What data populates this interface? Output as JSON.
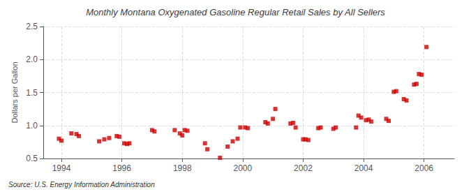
{
  "chart_data": {
    "type": "scatter",
    "title": "Monthly Montana Oxygenated Gasoline Regular Retail Sales by All Sellers",
    "ylabel": "Dollars per Gallon",
    "annotations": [
      "Source: U.S. Energy Information Administration"
    ],
    "color": "#cc0000",
    "marker": "square",
    "grid": true,
    "xlim": [
      1993.4,
      2007.0
    ],
    "xticks": [
      1994,
      1996,
      1998,
      2000,
      2002,
      2004,
      2006
    ],
    "ylim": [
      0.5,
      2.5
    ],
    "yticks": [
      0.5,
      {
        "value": 1.0,
        "label": "1.0"
      },
      1.5,
      {
        "value": 2.0,
        "label": "2.0"
      },
      2.5
    ],
    "x": [
      1993.92,
      1994.0,
      1994.33,
      1994.5,
      1994.58,
      1995.25,
      1995.42,
      1995.58,
      1995.83,
      1995.92,
      1996.08,
      1996.17,
      1996.25,
      1997.0,
      1997.08,
      1997.75,
      1997.92,
      1998.0,
      1998.08,
      1998.17,
      1998.75,
      1998.83,
      1999.25,
      1999.5,
      1999.67,
      1999.83,
      1999.92,
      2000.08,
      2000.17,
      2000.75,
      2000.83,
      2001.0,
      2001.08,
      2001.58,
      2001.67,
      2001.75,
      2002.0,
      2002.08,
      2002.17,
      2002.5,
      2002.58,
      2003.0,
      2003.08,
      2003.75,
      2003.83,
      2003.92,
      2004.08,
      2004.17,
      2004.25,
      2004.75,
      2004.83,
      2005.0,
      2005.08,
      2005.33,
      2005.42,
      2005.67,
      2005.75,
      2005.83,
      2005.92,
      2006.08
    ],
    "values": [
      0.8,
      0.77,
      0.88,
      0.87,
      0.84,
      0.76,
      0.79,
      0.81,
      0.84,
      0.83,
      0.73,
      0.72,
      0.73,
      0.93,
      0.91,
      0.93,
      0.88,
      0.85,
      0.93,
      0.92,
      0.73,
      0.64,
      0.51,
      0.68,
      0.76,
      0.8,
      0.97,
      0.97,
      0.96,
      1.05,
      1.03,
      1.1,
      1.25,
      1.03,
      1.04,
      0.97,
      0.79,
      0.79,
      0.78,
      0.96,
      0.97,
      0.95,
      0.97,
      0.97,
      1.15,
      1.12,
      1.08,
      1.09,
      1.06,
      1.1,
      1.07,
      1.51,
      1.52,
      1.4,
      1.38,
      1.62,
      1.63,
      1.78,
      1.77,
      2.19
    ]
  }
}
